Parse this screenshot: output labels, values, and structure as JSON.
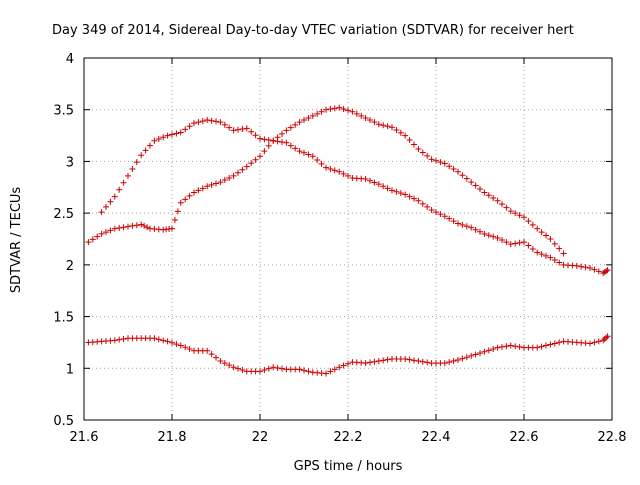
{
  "chart_data": {
    "type": "scatter",
    "title": "Day 349 of 2014, Sidereal Day-to-day VTEC variation (SDTVAR) for receiver hert",
    "xlabel": "GPS time / hours",
    "ylabel": "SDTVAR / TECUs",
    "xlim": [
      21.6,
      22.8
    ],
    "ylim": [
      0.5,
      4
    ],
    "xticks": [
      "21.6",
      "21.8",
      "22",
      "22.2",
      "22.4",
      "22.6",
      "22.8"
    ],
    "yticks": [
      "0.5",
      "1",
      "1.5",
      "2",
      "2.5",
      "3",
      "3.5",
      "4"
    ],
    "grid": true,
    "marker": "+",
    "color": "#cc0000",
    "series": [
      {
        "name": "series-upper",
        "x": [
          21.64,
          21.67,
          21.7,
          21.73,
          21.76,
          21.79,
          21.82,
          21.85,
          21.88,
          21.91,
          21.94,
          21.97,
          22.0,
          22.03,
          22.06,
          22.09,
          22.12,
          22.15,
          22.18,
          22.21,
          22.24,
          22.27,
          22.3,
          22.33,
          22.36,
          22.39,
          22.42,
          22.45,
          22.48,
          22.51,
          22.54,
          22.57,
          22.6,
          22.63,
          22.66,
          22.69,
          22.72,
          22.75,
          22.78,
          22.79
        ],
        "y": [
          2.51,
          2.66,
          2.86,
          3.06,
          3.2,
          3.25,
          3.28,
          3.37,
          3.4,
          3.38,
          3.3,
          3.32,
          3.22,
          3.2,
          3.18,
          3.1,
          3.05,
          2.94,
          2.9,
          2.84,
          2.83,
          2.78,
          2.72,
          2.68,
          2.62,
          2.53,
          2.47,
          2.4,
          2.36,
          2.3,
          2.26,
          2.2,
          2.22,
          2.12,
          2.07,
          2.0,
          1.99,
          1.97,
          1.92,
          1.95
        ]
      },
      {
        "name": "series-middle",
        "x": [
          21.61,
          21.64,
          21.67,
          21.7,
          21.73,
          21.75,
          21.78,
          21.8,
          21.82,
          21.85,
          21.88,
          21.91,
          21.94,
          21.97,
          22.0,
          22.03,
          22.06,
          22.09,
          22.12,
          22.15,
          22.18,
          22.21,
          22.24,
          22.27,
          22.3,
          22.33,
          22.36,
          22.39,
          22.42,
          22.45,
          22.48,
          22.51,
          22.54,
          22.57,
          22.6,
          22.63,
          22.66,
          22.69
        ],
        "y": [
          2.22,
          2.3,
          2.35,
          2.37,
          2.39,
          2.35,
          2.34,
          2.35,
          2.6,
          2.7,
          2.76,
          2.8,
          2.86,
          2.95,
          3.05,
          3.2,
          3.3,
          3.38,
          3.44,
          3.5,
          3.52,
          3.48,
          3.42,
          3.36,
          3.33,
          3.25,
          3.12,
          3.02,
          2.98,
          2.9,
          2.8,
          2.7,
          2.62,
          2.52,
          2.46,
          2.35,
          2.25,
          2.11
        ]
      },
      {
        "name": "series-lower",
        "x": [
          21.61,
          21.64,
          21.67,
          21.7,
          21.73,
          21.76,
          21.79,
          21.82,
          21.85,
          21.88,
          21.91,
          21.94,
          21.97,
          22.0,
          22.03,
          22.06,
          22.09,
          22.12,
          22.15,
          22.18,
          22.21,
          22.24,
          22.27,
          22.3,
          22.33,
          22.36,
          22.39,
          22.42,
          22.45,
          22.48,
          22.51,
          22.54,
          22.57,
          22.6,
          22.63,
          22.66,
          22.69,
          22.72,
          22.75,
          22.78,
          22.79
        ],
        "y": [
          1.25,
          1.26,
          1.27,
          1.29,
          1.29,
          1.29,
          1.26,
          1.22,
          1.17,
          1.17,
          1.07,
          1.01,
          0.97,
          0.97,
          1.01,
          0.99,
          0.99,
          0.96,
          0.95,
          1.01,
          1.06,
          1.05,
          1.07,
          1.09,
          1.09,
          1.07,
          1.05,
          1.05,
          1.08,
          1.12,
          1.16,
          1.2,
          1.22,
          1.2,
          1.2,
          1.23,
          1.26,
          1.25,
          1.24,
          1.27,
          1.31
        ]
      }
    ]
  }
}
